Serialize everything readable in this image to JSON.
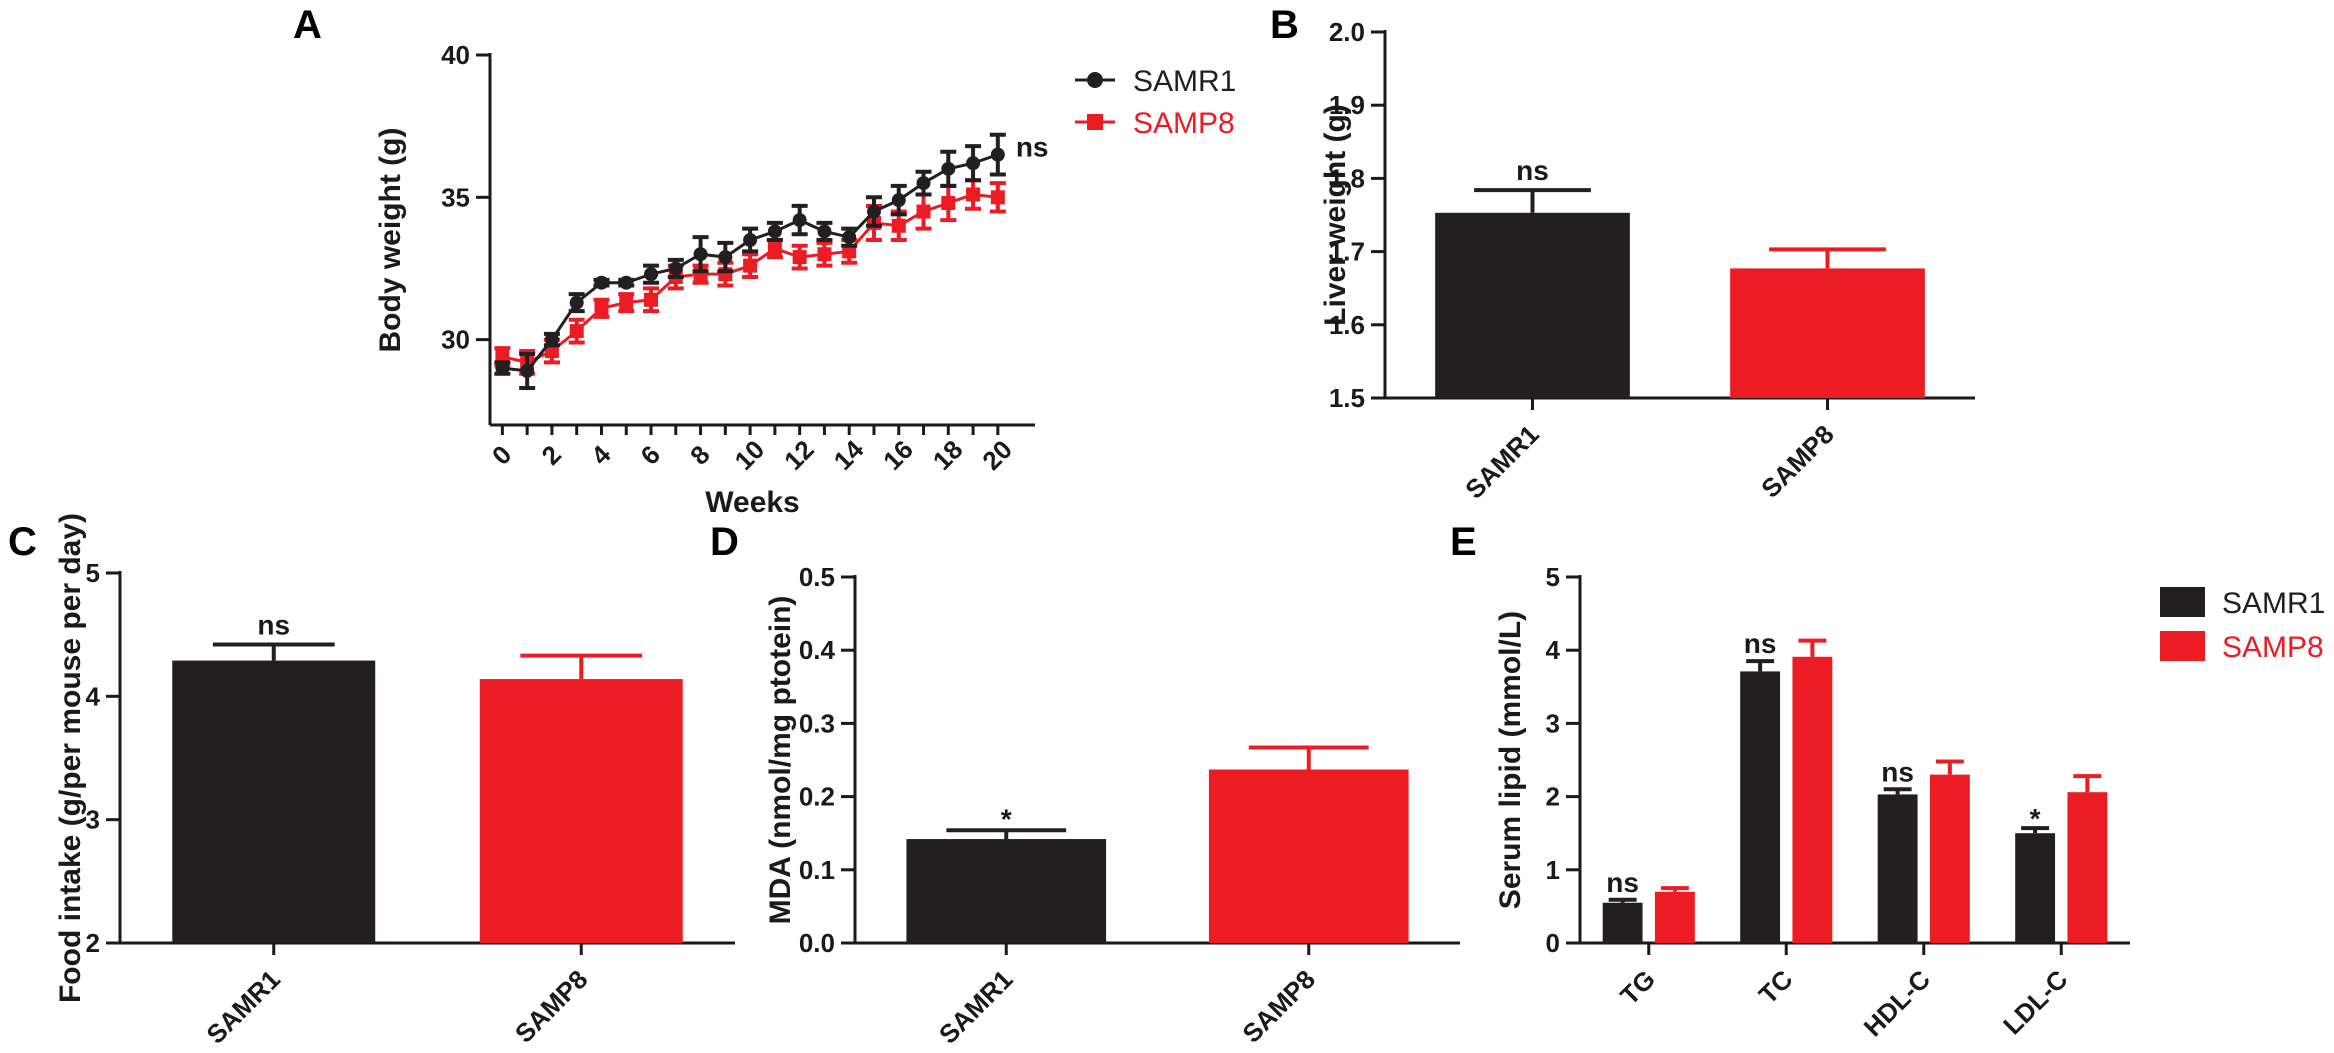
{
  "colors": {
    "samr1": "#231f20",
    "samp8": "#ec1c24",
    "axis": "#1a1a1a"
  },
  "chart_data": [
    {
      "id": "A",
      "panel_label": "A",
      "type": "line",
      "title": "",
      "xlabel": "Weeks",
      "ylabel": "Body weight (g)",
      "xlim": [
        -0.5,
        21.5
      ],
      "ylim": [
        27,
        40
      ],
      "xticks": [
        0,
        2,
        4,
        6,
        8,
        10,
        12,
        14,
        16,
        18,
        20
      ],
      "yticks": [
        30,
        35,
        40
      ],
      "x": [
        0,
        1,
        2,
        3,
        4,
        5,
        6,
        7,
        8,
        9,
        10,
        11,
        12,
        13,
        14,
        15,
        16,
        17,
        18,
        19,
        20
      ],
      "series": [
        {
          "name": "SAMR1",
          "color": "#231f20",
          "marker": "circle",
          "values": [
            29.0,
            28.9,
            30.0,
            31.3,
            32.0,
            32.0,
            32.3,
            32.5,
            33.0,
            32.9,
            33.5,
            33.8,
            34.2,
            33.8,
            33.6,
            34.5,
            34.9,
            35.5,
            36.0,
            36.2,
            36.5
          ],
          "errors": [
            0.2,
            0.6,
            0.2,
            0.3,
            0.1,
            0.1,
            0.3,
            0.3,
            0.6,
            0.5,
            0.4,
            0.3,
            0.5,
            0.3,
            0.3,
            0.5,
            0.5,
            0.4,
            0.6,
            0.6,
            0.7
          ]
        },
        {
          "name": "SAMP8",
          "color": "#ec1c24",
          "marker": "square",
          "values": [
            29.4,
            29.2,
            29.6,
            30.3,
            31.1,
            31.3,
            31.4,
            32.2,
            32.3,
            32.3,
            32.6,
            33.2,
            32.9,
            33.0,
            33.1,
            34.1,
            34.0,
            34.5,
            34.8,
            35.1,
            35.0
          ],
          "errors": [
            0.3,
            0.4,
            0.4,
            0.4,
            0.3,
            0.3,
            0.4,
            0.4,
            0.3,
            0.4,
            0.4,
            0.3,
            0.4,
            0.4,
            0.4,
            0.6,
            0.5,
            0.6,
            0.6,
            0.5,
            0.5
          ]
        }
      ],
      "legend": {
        "position": "top-right",
        "entries": [
          "SAMR1",
          "SAMP8"
        ]
      },
      "annotations": [
        {
          "text": "ns",
          "at": "end-of-series"
        }
      ]
    },
    {
      "id": "B",
      "panel_label": "B",
      "type": "bar",
      "title": "",
      "xlabel": "",
      "ylabel": "Liver weight (g)",
      "ylim": [
        1.5,
        2.0
      ],
      "yticks": [
        1.5,
        1.6,
        1.7,
        1.8,
        1.9,
        2.0
      ],
      "tick_decimals": 1,
      "categories": [
        "SAMR1",
        "SAMP8"
      ],
      "values": [
        1.753,
        1.677
      ],
      "errors": [
        0.031,
        0.026
      ],
      "colors": [
        "#231f20",
        "#ec1c24"
      ],
      "annotations": [
        {
          "text": "ns",
          "bar": 0
        }
      ]
    },
    {
      "id": "C",
      "panel_label": "C",
      "type": "bar",
      "title": "",
      "xlabel": "",
      "ylabel": "Food intake (g/per mouse per day)",
      "ylim": [
        2,
        5
      ],
      "yticks": [
        2,
        3,
        4,
        5
      ],
      "tick_decimals": 0,
      "categories": [
        "SAMR1",
        "SAMP8"
      ],
      "values": [
        4.29,
        4.14
      ],
      "errors": [
        0.13,
        0.19
      ],
      "colors": [
        "#231f20",
        "#ec1c24"
      ],
      "annotations": [
        {
          "text": "ns",
          "bar": 0
        }
      ]
    },
    {
      "id": "D",
      "panel_label": "D",
      "type": "bar",
      "title": "",
      "xlabel": "",
      "ylabel": "MDA (nmol/mg ptotein)",
      "ylim": [
        0.0,
        0.5
      ],
      "yticks": [
        0.0,
        0.1,
        0.2,
        0.3,
        0.4,
        0.5
      ],
      "tick_decimals": 1,
      "categories": [
        "SAMR1",
        "SAMP8"
      ],
      "values": [
        0.142,
        0.237
      ],
      "errors": [
        0.012,
        0.03
      ],
      "colors": [
        "#231f20",
        "#ec1c24"
      ],
      "annotations": [
        {
          "text": "*",
          "bar": 0
        }
      ]
    },
    {
      "id": "E",
      "panel_label": "E",
      "type": "bar",
      "title": "",
      "xlabel": "",
      "ylabel": "Serum lipid (mmol/L)",
      "ylim": [
        0,
        5
      ],
      "yticks": [
        0,
        1,
        2,
        3,
        4,
        5
      ],
      "tick_decimals": 0,
      "categories": [
        "TG",
        "TC",
        "HDL-C",
        "LDL-C"
      ],
      "series": [
        {
          "name": "SAMR1",
          "color": "#231f20",
          "values": [
            0.55,
            3.71,
            2.03,
            1.5
          ],
          "errors": [
            0.04,
            0.14,
            0.07,
            0.07
          ]
        },
        {
          "name": "SAMP8",
          "color": "#ec1c24",
          "values": [
            0.7,
            3.91,
            2.3,
            2.06
          ],
          "errors": [
            0.05,
            0.22,
            0.18,
            0.22
          ]
        }
      ],
      "legend": {
        "position": "top-right",
        "entries": [
          "SAMR1",
          "SAMP8"
        ]
      },
      "annotations": [
        {
          "text": "ns",
          "category": 0
        },
        {
          "text": "ns",
          "category": 1
        },
        {
          "text": "ns",
          "category": 2
        },
        {
          "text": "*",
          "category": 3
        }
      ]
    }
  ]
}
